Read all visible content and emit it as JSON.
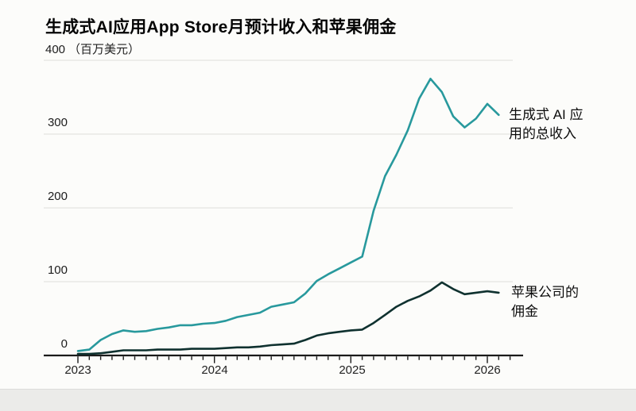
{
  "chart_data": {
    "type": "line",
    "title": "生成式AI应用App Store月预计收入和苹果佣金",
    "unit_label": "（百万美元）",
    "xlabel": "",
    "ylabel": "百万美元",
    "ylim": [
      0,
      400
    ],
    "grid": true,
    "legend_position": "right-annotations",
    "y_ticks": [
      0,
      100,
      200,
      300,
      400
    ],
    "x_year_labels": [
      "2023",
      "2024",
      "2025",
      "2026"
    ],
    "months": [
      "2023-01",
      "2023-02",
      "2023-03",
      "2023-04",
      "2023-05",
      "2023-06",
      "2023-07",
      "2023-08",
      "2023-09",
      "2023-10",
      "2023-11",
      "2023-12",
      "2024-01",
      "2024-02",
      "2024-03",
      "2024-04",
      "2024-05",
      "2024-06",
      "2024-07",
      "2024-08",
      "2024-09",
      "2024-10",
      "2024-11",
      "2024-12",
      "2025-01",
      "2025-02",
      "2025-03",
      "2025-04",
      "2025-05",
      "2025-06",
      "2025-07",
      "2025-08",
      "2025-09",
      "2025-10",
      "2025-11",
      "2025-12",
      "2026-01",
      "2026-02"
    ],
    "series": [
      {
        "name": "生成式 AI 应用的总收入",
        "color": "#28999d",
        "values": [
          6,
          8,
          21,
          29,
          34,
          32,
          33,
          36,
          38,
          41,
          41,
          43,
          44,
          47,
          52,
          55,
          58,
          66,
          69,
          72,
          84,
          101,
          110,
          118,
          126,
          134,
          196,
          243,
          272,
          305,
          348,
          375,
          357,
          324,
          309,
          321,
          341,
          326
        ]
      },
      {
        "name": "苹果公司的佣金",
        "color": "#0f312f",
        "values": [
          2,
          2,
          3,
          5,
          7,
          7,
          7,
          8,
          8,
          8,
          9,
          9,
          9,
          10,
          11,
          11,
          12,
          14,
          15,
          16,
          21,
          27,
          30,
          32,
          34,
          35,
          44,
          55,
          66,
          74,
          80,
          88,
          99,
          90,
          83,
          85,
          87,
          85
        ]
      }
    ],
    "annotations": [
      {
        "target": "revenue-line",
        "lines": [
          "生成式 AI 应",
          "用的总收入"
        ]
      },
      {
        "target": "commission-line",
        "lines": [
          "苹果公司的",
          "佣金"
        ]
      }
    ],
    "colors": {
      "grid": "#e4e4e0",
      "axis": "#1a1a1a"
    }
  }
}
